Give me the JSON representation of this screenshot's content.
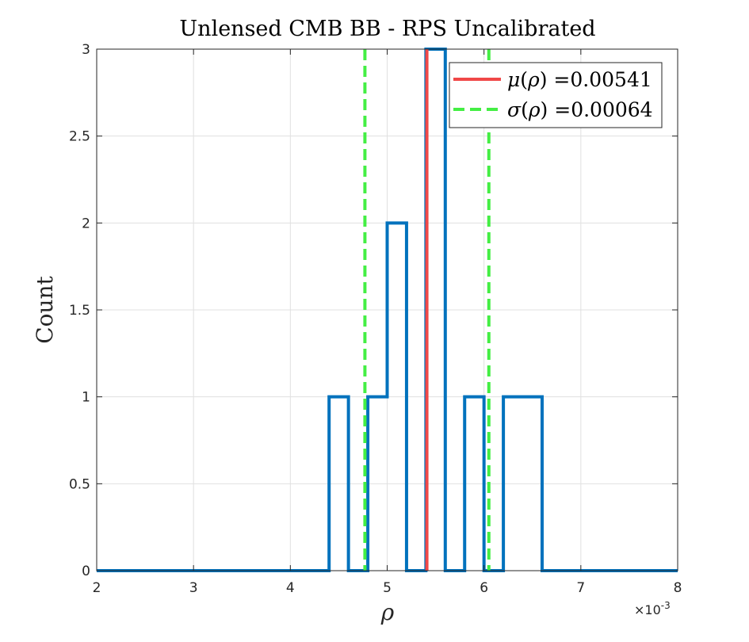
{
  "chart_data": {
    "type": "histogram",
    "title": "Unlensed CMB BB - RPS Uncalibrated",
    "xlabel": "ρ",
    "ylabel": "Count",
    "x_exponent_label": "×10",
    "x_exponent_power": "-3",
    "xlim": [
      2,
      8
    ],
    "ylim": [
      0,
      3
    ],
    "grid": true,
    "legend_placement": "top-right",
    "x_ticks": [
      2,
      3,
      4,
      5,
      6,
      7,
      8
    ],
    "y_ticks": [
      0,
      0.5,
      1,
      1.5,
      2,
      2.5,
      3
    ],
    "x_tick_labels": [
      "2",
      "3",
      "4",
      "5",
      "6",
      "7",
      "8"
    ],
    "y_tick_labels": [
      "0",
      "0.5",
      "1",
      "1.5",
      "2",
      "2.5",
      "3"
    ],
    "bin_edges": [
      2.0,
      2.2,
      2.4,
      2.6,
      2.8,
      3.0,
      3.2,
      3.4,
      3.6,
      3.8,
      4.0,
      4.2,
      4.4,
      4.6,
      4.8,
      5.0,
      5.2,
      5.4,
      5.6,
      5.8,
      6.0,
      6.2,
      6.4,
      6.6,
      6.8,
      7.0,
      7.2,
      7.4,
      7.6,
      7.8,
      8.0
    ],
    "counts": [
      0,
      0,
      0,
      0,
      0,
      0,
      0,
      0,
      0,
      0,
      0,
      0,
      1,
      0,
      1,
      2,
      0,
      3,
      0,
      1,
      0,
      1,
      1,
      0,
      0,
      0,
      0,
      0,
      0,
      0
    ],
    "histogram_color": "#0072BD",
    "series": [
      {
        "name": "μ(ρ) =0.00541",
        "legend_symbol": "μ",
        "legend_value": "=0.00541",
        "kind": "vertical_line",
        "x": [
          5.41
        ],
        "style": "solid",
        "color": "#F04848"
      },
      {
        "name": "σ(ρ) =0.00064",
        "legend_symbol": "σ",
        "legend_value": "=0.00064",
        "kind": "vertical_line",
        "x": [
          4.77,
          6.05
        ],
        "style": "dashed",
        "color": "#44EE44"
      }
    ]
  }
}
